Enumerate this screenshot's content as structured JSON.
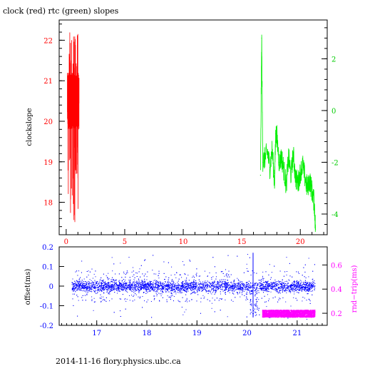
{
  "page": {
    "title": "clock (red) rtc (green) slopes",
    "footer": "2014-11-16 flory.physics.ubc.ca"
  },
  "colors": {
    "clock": "#ff0000",
    "rtc": "#00ee00",
    "offset": "#0000ff",
    "rndtrip": "#ff00ff",
    "axes": "#000000"
  },
  "chart_data": [
    {
      "type": "line",
      "title": "clock (red) rtc (green) slopes",
      "xlabel": "",
      "ylabel": "clockslope",
      "xlim": [
        -0.6,
        22.3
      ],
      "ylim": [
        17.2,
        22.5
      ],
      "grid": false,
      "x_ticks": [
        0,
        5,
        10,
        15,
        20
      ],
      "y_ticks": [
        18,
        19,
        20,
        21,
        22
      ],
      "y2label": "",
      "y2lim": [
        -4.8,
        3.5
      ],
      "y2_ticks": [
        -4,
        -2,
        0,
        2
      ],
      "series": [
        {
          "axis": "left",
          "color": "#ff0000",
          "x_range": [
            0.1,
            1.1
          ],
          "y_envelope": {
            "min": 17.4,
            "max": 22.2,
            "typical": [
              19.8,
              21.2
            ]
          }
        },
        {
          "axis": "right",
          "color": "#00ee00",
          "x": [
            16.6,
            16.7,
            16.8,
            17.0,
            17.2,
            17.4,
            17.6,
            17.8,
            17.9,
            18.0,
            18.2,
            18.4,
            18.6,
            18.8,
            19.0,
            19.2,
            19.4,
            19.6,
            19.8,
            20.0,
            20.2,
            20.4,
            20.6,
            20.8,
            21.0,
            21.2,
            21.3
          ],
          "y": [
            -2.5,
            2.8,
            -2.0,
            -1.8,
            -1.6,
            -2.2,
            -1.5,
            -2.8,
            -0.9,
            -1.0,
            -2.0,
            -1.8,
            -2.3,
            -2.9,
            -1.8,
            -2.5,
            -1.7,
            -2.6,
            -2.8,
            -2.4,
            -2.1,
            -2.6,
            -3.0,
            -2.7,
            -3.1,
            -3.6,
            -4.6
          ]
        }
      ]
    },
    {
      "type": "scatter",
      "xlabel": "",
      "ylabel": "offset(ms)",
      "y2label": "rnd−trip(ms)",
      "xlim": [
        16.25,
        21.6
      ],
      "ylim": [
        -0.2,
        0.2
      ],
      "y2lim": [
        0.1,
        0.75
      ],
      "grid": false,
      "x_ticks": [
        17,
        18,
        19,
        20,
        21
      ],
      "y_ticks": [
        -0.2,
        -0.1,
        0,
        0.1,
        0.2
      ],
      "y2_ticks": [
        0.2,
        0.4,
        0.6
      ],
      "series": [
        {
          "axis": "left",
          "color": "#0000ff",
          "x_range": [
            16.5,
            21.35
          ],
          "y_envelope": {
            "band": [
              -0.03,
              0.03
            ],
            "min": -0.2,
            "max": 0.2
          }
        },
        {
          "axis": "right",
          "color": "#ff00ff",
          "x_range": [
            20.3,
            21.35
          ],
          "y_envelope": {
            "band": [
              0.17,
              0.23
            ]
          }
        }
      ]
    }
  ]
}
